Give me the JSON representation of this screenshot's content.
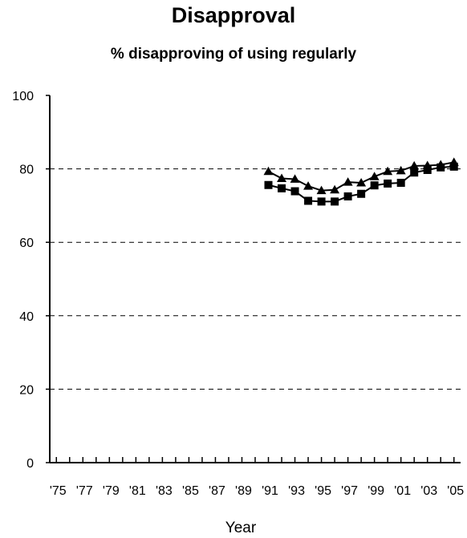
{
  "chart_data": {
    "type": "line",
    "title": "Disapproval",
    "subtitle": "% disapproving of using regularly",
    "xlabel": "Year",
    "ylabel": "",
    "ylim": [
      0,
      100
    ],
    "yticks": [
      0,
      20,
      40,
      60,
      80,
      100
    ],
    "xlim": [
      1975,
      2005
    ],
    "x_tick_labels": [
      "'75",
      "'77",
      "'79",
      "'81",
      "'83",
      "'85",
      "'87",
      "'89",
      "'91",
      "'93",
      "'95",
      "'97",
      "'99",
      "'01",
      "'03",
      "'05"
    ],
    "grid": "dashed horizontal",
    "x": [
      1991,
      1992,
      1993,
      1994,
      1995,
      1996,
      1997,
      1998,
      1999,
      2000,
      2001,
      2002,
      2003,
      2004,
      2005
    ],
    "series": [
      {
        "marker": "triangle",
        "color": "#000000",
        "values": [
          79.3,
          77.4,
          77.2,
          75.3,
          74.1,
          74.3,
          76.4,
          76.2,
          77.9,
          79.3,
          79.5,
          80.8,
          80.9,
          81.1,
          81.8
        ]
      },
      {
        "marker": "square",
        "color": "#000000",
        "values": [
          75.6,
          74.7,
          73.9,
          71.3,
          71.1,
          71.1,
          72.5,
          73.2,
          75.5,
          76.0,
          76.2,
          79.0,
          79.7,
          80.4,
          80.6
        ]
      }
    ]
  }
}
